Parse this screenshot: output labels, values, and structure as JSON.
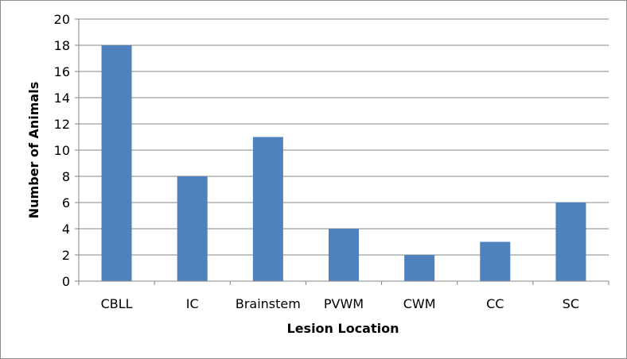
{
  "chart_data": {
    "type": "bar",
    "title": "",
    "xlabel": "Lesion Location",
    "ylabel": "Number of Animals",
    "categories": [
      "CBLL",
      "IC",
      "Brainstem",
      "PVWM",
      "CWM",
      "CC",
      "SC"
    ],
    "values": [
      18,
      8,
      11,
      4,
      2,
      3,
      6
    ],
    "ylim": [
      0,
      20
    ],
    "yticks": [
      "0",
      "2",
      "4",
      "6",
      "8",
      "10",
      "12",
      "14",
      "16",
      "18",
      "20"
    ],
    "grid": true,
    "legend": "none",
    "bar_color": "#4f81bd",
    "grid_color": "#868686"
  }
}
